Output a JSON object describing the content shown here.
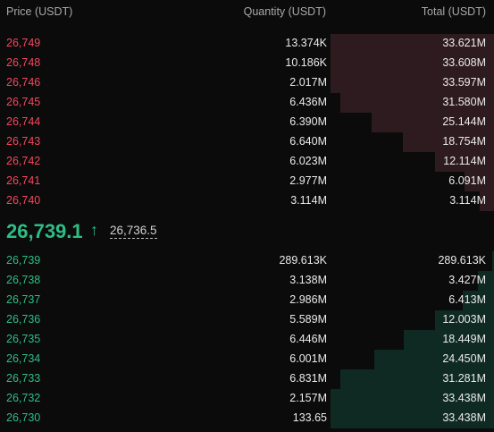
{
  "header": {
    "price_label": "Price (USDT)",
    "quantity_label": "Quantity (USDT)",
    "total_label": "Total (USDT)"
  },
  "colors": {
    "ask": "#f6465d",
    "bid": "#2ebd85",
    "ask_depth": "#2e1b1f",
    "bid_depth": "#0f2a22"
  },
  "asks": [
    {
      "price": "26,749",
      "quantity": "13.374K",
      "total": "33.621M",
      "depth": 1.0
    },
    {
      "price": "26,748",
      "quantity": "10.186K",
      "total": "33.608M",
      "depth": 1.0
    },
    {
      "price": "26,746",
      "quantity": "2.017M",
      "total": "33.597M",
      "depth": 1.0
    },
    {
      "price": "26,745",
      "quantity": "6.436M",
      "total": "31.580M",
      "depth": 0.94
    },
    {
      "price": "26,744",
      "quantity": "6.390M",
      "total": "25.144M",
      "depth": 0.75
    },
    {
      "price": "26,743",
      "quantity": "6.640M",
      "total": "18.754M",
      "depth": 0.56
    },
    {
      "price": "26,742",
      "quantity": "6.023M",
      "total": "12.114M",
      "depth": 0.36
    },
    {
      "price": "26,741",
      "quantity": "2.977M",
      "total": "6.091M",
      "depth": 0.18
    },
    {
      "price": "26,740",
      "quantity": "3.114M",
      "total": "3.114M",
      "depth": 0.09
    }
  ],
  "mid": {
    "last_price": "26,739.1",
    "direction_icon": "arrow-up",
    "arrow_glyph": "↑",
    "mark_price": "26,736.5"
  },
  "bids": [
    {
      "price": "26,739",
      "quantity": "289.613K",
      "total": "289.613K",
      "depth": 0.01
    },
    {
      "price": "26,738",
      "quantity": "3.138M",
      "total": "3.427M",
      "depth": 0.1
    },
    {
      "price": "26,737",
      "quantity": "2.986M",
      "total": "6.413M",
      "depth": 0.19
    },
    {
      "price": "26,736",
      "quantity": "5.589M",
      "total": "12.003M",
      "depth": 0.36
    },
    {
      "price": "26,735",
      "quantity": "6.446M",
      "total": "18.449M",
      "depth": 0.55
    },
    {
      "price": "26,734",
      "quantity": "6.001M",
      "total": "24.450M",
      "depth": 0.73
    },
    {
      "price": "26,733",
      "quantity": "6.831M",
      "total": "31.281M",
      "depth": 0.94
    },
    {
      "price": "26,732",
      "quantity": "2.157M",
      "total": "33.438M",
      "depth": 1.0
    },
    {
      "price": "26,730",
      "quantity": "133.65",
      "total": "33.438M",
      "depth": 1.0
    }
  ]
}
